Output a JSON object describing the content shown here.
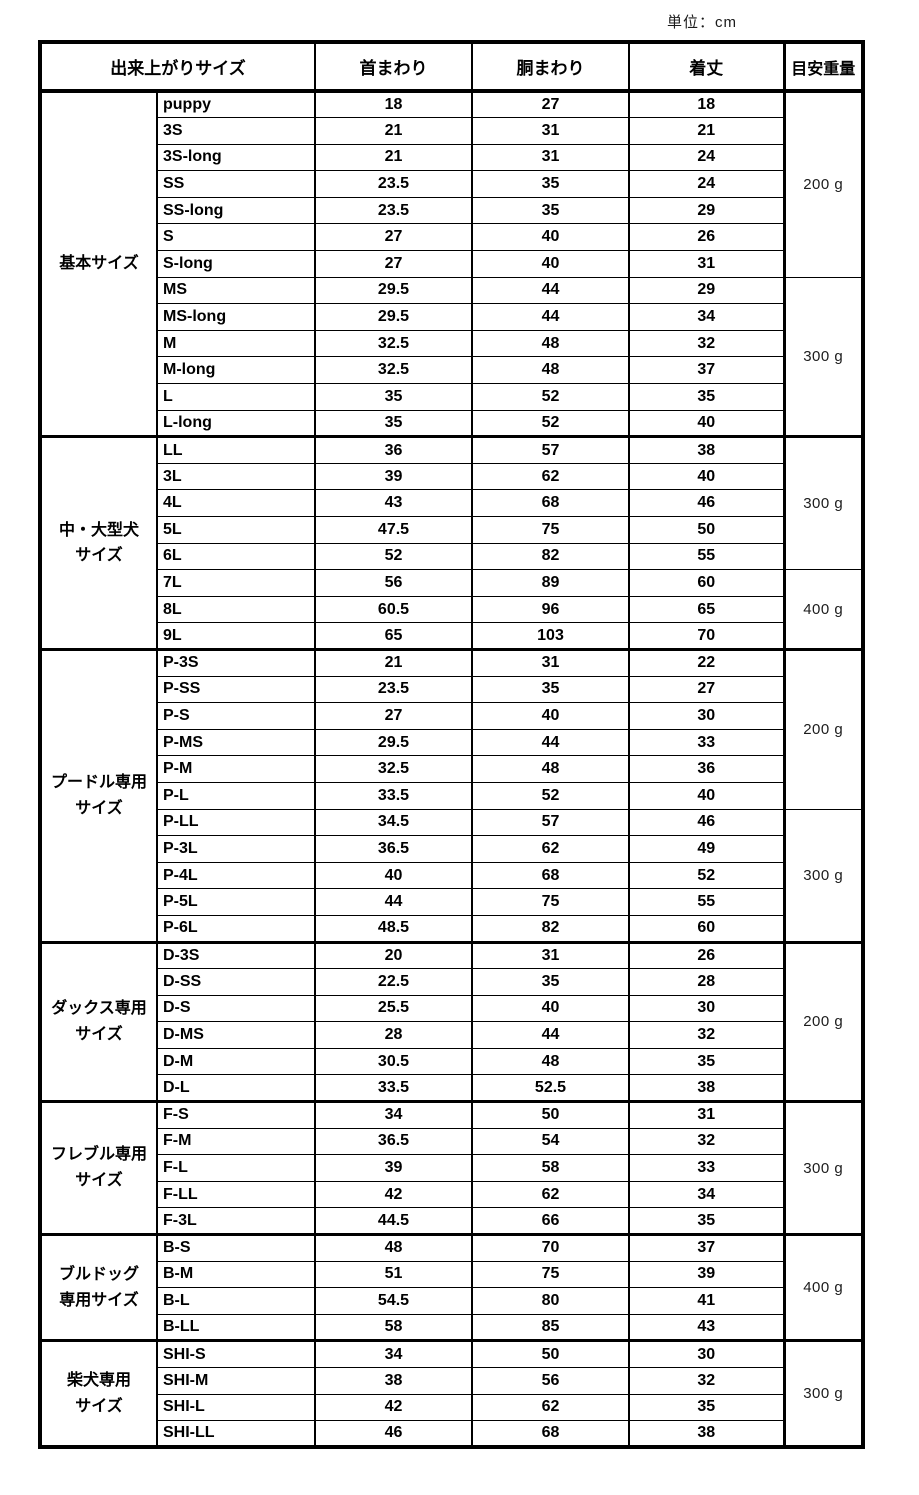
{
  "unit_label": "単位：cm",
  "table": {
    "headers": {
      "size": "出来上がりサイズ",
      "neck": "首まわり",
      "chest": "胴まわり",
      "length": "着丈",
      "weight": "目安重量"
    },
    "sections": [
      {
        "category": "基本サイズ",
        "rows": [
          {
            "name": "puppy",
            "neck": "18",
            "chest": "27",
            "length": "18"
          },
          {
            "name": "3S",
            "neck": "21",
            "chest": "31",
            "length": "21"
          },
          {
            "name": "3S-long",
            "neck": "21",
            "chest": "31",
            "length": "24"
          },
          {
            "name": "SS",
            "neck": "23.5",
            "chest": "35",
            "length": "24"
          },
          {
            "name": "SS-long",
            "neck": "23.5",
            "chest": "35",
            "length": "29"
          },
          {
            "name": "S",
            "neck": "27",
            "chest": "40",
            "length": "26"
          },
          {
            "name": "S-long",
            "neck": "27",
            "chest": "40",
            "length": "31"
          },
          {
            "name": "MS",
            "neck": "29.5",
            "chest": "44",
            "length": "29"
          },
          {
            "name": "MS-long",
            "neck": "29.5",
            "chest": "44",
            "length": "34"
          },
          {
            "name": "M",
            "neck": "32.5",
            "chest": "48",
            "length": "32"
          },
          {
            "name": "M-long",
            "neck": "32.5",
            "chest": "48",
            "length": "37"
          },
          {
            "name": "L",
            "neck": "35",
            "chest": "52",
            "length": "35"
          },
          {
            "name": "L-long",
            "neck": "35",
            "chest": "52",
            "length": "40"
          }
        ],
        "weight_groups": [
          {
            "label": "200 g",
            "rows": 7
          },
          {
            "label": "300 g",
            "rows": 6
          }
        ]
      },
      {
        "category": "中・大型犬\nサイズ",
        "rows": [
          {
            "name": "LL",
            "neck": "36",
            "chest": "57",
            "length": "38"
          },
          {
            "name": "3L",
            "neck": "39",
            "chest": "62",
            "length": "40"
          },
          {
            "name": "4L",
            "neck": "43",
            "chest": "68",
            "length": "46"
          },
          {
            "name": "5L",
            "neck": "47.5",
            "chest": "75",
            "length": "50"
          },
          {
            "name": "6L",
            "neck": "52",
            "chest": "82",
            "length": "55"
          },
          {
            "name": "7L",
            "neck": "56",
            "chest": "89",
            "length": "60"
          },
          {
            "name": "8L",
            "neck": "60.5",
            "chest": "96",
            "length": "65"
          },
          {
            "name": "9L",
            "neck": "65",
            "chest": "103",
            "length": "70"
          }
        ],
        "weight_groups": [
          {
            "label": "300 g",
            "rows": 5
          },
          {
            "label": "400 g",
            "rows": 3
          }
        ]
      },
      {
        "category": "プードル専用\nサイズ",
        "rows": [
          {
            "name": "P-3S",
            "neck": "21",
            "chest": "31",
            "length": "22"
          },
          {
            "name": "P-SS",
            "neck": "23.5",
            "chest": "35",
            "length": "27"
          },
          {
            "name": "P-S",
            "neck": "27",
            "chest": "40",
            "length": "30"
          },
          {
            "name": "P-MS",
            "neck": "29.5",
            "chest": "44",
            "length": "33"
          },
          {
            "name": "P-M",
            "neck": "32.5",
            "chest": "48",
            "length": "36"
          },
          {
            "name": "P-L",
            "neck": "33.5",
            "chest": "52",
            "length": "40"
          },
          {
            "name": "P-LL",
            "neck": "34.5",
            "chest": "57",
            "length": "46"
          },
          {
            "name": "P-3L",
            "neck": "36.5",
            "chest": "62",
            "length": "49"
          },
          {
            "name": "P-4L",
            "neck": "40",
            "chest": "68",
            "length": "52"
          },
          {
            "name": "P-5L",
            "neck": "44",
            "chest": "75",
            "length": "55"
          },
          {
            "name": "P-6L",
            "neck": "48.5",
            "chest": "82",
            "length": "60"
          }
        ],
        "weight_groups": [
          {
            "label": "200 g",
            "rows": 6
          },
          {
            "label": "300 g",
            "rows": 5
          }
        ]
      },
      {
        "category": "ダックス専用\nサイズ",
        "rows": [
          {
            "name": "D-3S",
            "neck": "20",
            "chest": "31",
            "length": "26"
          },
          {
            "name": "D-SS",
            "neck": "22.5",
            "chest": "35",
            "length": "28"
          },
          {
            "name": "D-S",
            "neck": "25.5",
            "chest": "40",
            "length": "30"
          },
          {
            "name": "D-MS",
            "neck": "28",
            "chest": "44",
            "length": "32"
          },
          {
            "name": "D-M",
            "neck": "30.5",
            "chest": "48",
            "length": "35"
          },
          {
            "name": "D-L",
            "neck": "33.5",
            "chest": "52.5",
            "length": "38"
          }
        ],
        "weight_groups": [
          {
            "label": "200 g",
            "rows": 6
          }
        ]
      },
      {
        "category": "フレブル専用\nサイズ",
        "rows": [
          {
            "name": "F-S",
            "neck": "34",
            "chest": "50",
            "length": "31"
          },
          {
            "name": "F-M",
            "neck": "36.5",
            "chest": "54",
            "length": "32"
          },
          {
            "name": "F-L",
            "neck": "39",
            "chest": "58",
            "length": "33"
          },
          {
            "name": "F-LL",
            "neck": "42",
            "chest": "62",
            "length": "34"
          },
          {
            "name": "F-3L",
            "neck": "44.5",
            "chest": "66",
            "length": "35"
          }
        ],
        "weight_groups": [
          {
            "label": "300 g",
            "rows": 5
          }
        ]
      },
      {
        "category": "ブルドッグ\n専用サイズ",
        "rows": [
          {
            "name": "B-S",
            "neck": "48",
            "chest": "70",
            "length": "37"
          },
          {
            "name": "B-M",
            "neck": "51",
            "chest": "75",
            "length": "39"
          },
          {
            "name": "B-L",
            "neck": "54.5",
            "chest": "80",
            "length": "41"
          },
          {
            "name": "B-LL",
            "neck": "58",
            "chest": "85",
            "length": "43"
          }
        ],
        "weight_groups": [
          {
            "label": "400 g",
            "rows": 4
          }
        ]
      },
      {
        "category": "柴犬専用\nサイズ",
        "rows": [
          {
            "name": "SHI-S",
            "neck": "34",
            "chest": "50",
            "length": "30"
          },
          {
            "name": "SHI-M",
            "neck": "38",
            "chest": "56",
            "length": "32"
          },
          {
            "name": "SHI-L",
            "neck": "42",
            "chest": "62",
            "length": "35"
          },
          {
            "name": "SHI-LL",
            "neck": "46",
            "chest": "68",
            "length": "38"
          }
        ],
        "weight_groups": [
          {
            "label": "300 g",
            "rows": 4
          }
        ]
      }
    ]
  }
}
